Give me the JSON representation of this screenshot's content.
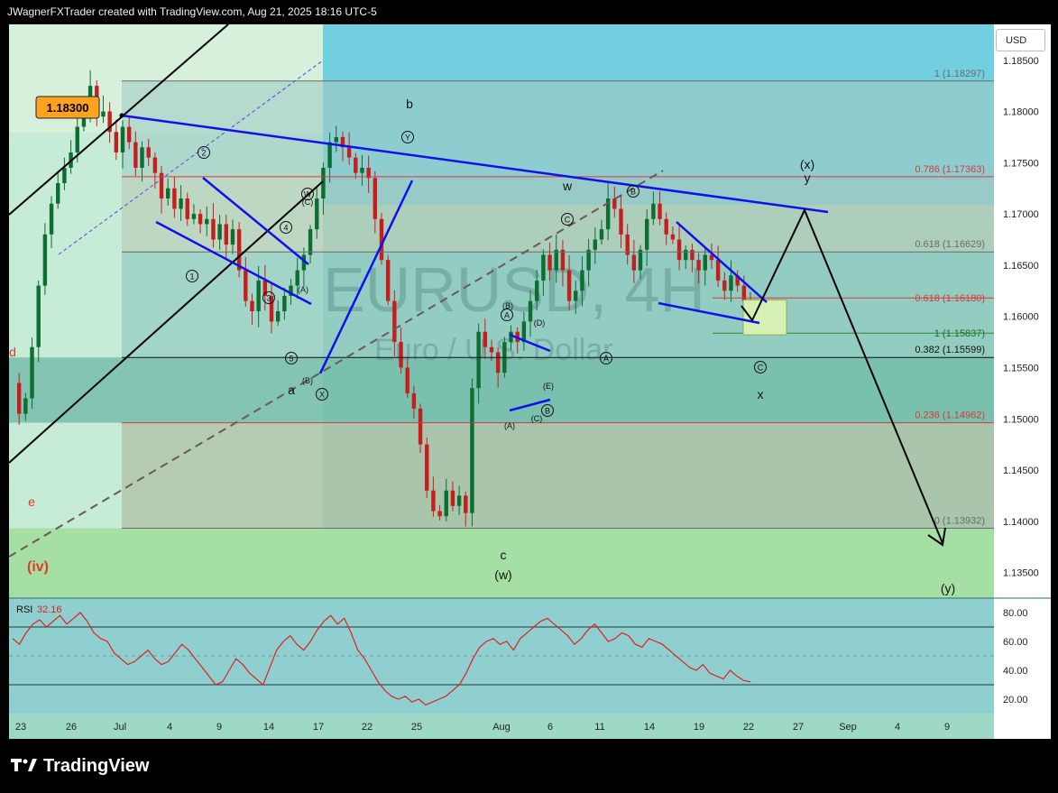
{
  "header": {
    "credit": "JWagnerFXTrader created with TradingView.com, Aug 21, 2025 18:16 UTC-5"
  },
  "currency_button": "USD",
  "price_tag": "1.18300",
  "watermark": {
    "symbol": "EURUSD, 4H",
    "name": "Euro / U.S. Dollar"
  },
  "brand": {
    "name": "TradingView"
  },
  "colors": {
    "panel_bg": "#74d3e2",
    "pane_bg": "#8fcfd0",
    "bull": "#0c6e32",
    "bear": "#c81d1d",
    "trend": "#1010ee",
    "fib_red": "#d83838",
    "green_zone": "#d6f0b4",
    "rsi": "#e02020",
    "tag_bg": "#ffa220"
  },
  "chart_data": [
    {
      "type": "candlestick",
      "title": "EUR/USD 4H",
      "yticks": [
        "1.18500",
        "1.18000",
        "1.17500",
        "1.17000",
        "1.16500",
        "1.16000",
        "1.15500",
        "1.15000",
        "1.14500",
        "1.14000",
        "1.13500"
      ],
      "xticks": [
        "23",
        "26",
        "Jul",
        "4",
        "9",
        "14",
        "17",
        "22",
        "25",
        "Aug",
        "6",
        "11",
        "14",
        "19",
        "22",
        "27",
        "Sep",
        "4",
        "9"
      ],
      "ylim": [
        1.1325,
        1.1885
      ],
      "fib_levels": [
        {
          "ratio": "1",
          "price": 1.18297,
          "label": "1 (1.18297)"
        },
        {
          "ratio": "0.786",
          "price": 1.17363,
          "label": "0.786 (1.17363)"
        },
        {
          "ratio": "0.618",
          "price": 1.16629,
          "label": "0.618 (1.16629)"
        },
        {
          "ratio": "0.382",
          "price": 1.15599,
          "label": "0.382 (1.15599)"
        },
        {
          "ratio": "0.236",
          "price": 1.14962,
          "label": "0.236 (1.14962)"
        },
        {
          "ratio": "0",
          "price": 1.13932,
          "label": "0 (1.13932)"
        }
      ],
      "extension_levels": [
        {
          "ratio": "0.618",
          "price": 1.1618,
          "label": "0.618 (1.16180)"
        },
        {
          "ratio": "1",
          "price": 1.15837,
          "label": "1 (1.15837)"
        }
      ],
      "price_path": [
        1.1535,
        1.1505,
        1.152,
        1.157,
        1.163,
        1.168,
        1.171,
        1.173,
        1.1745,
        1.176,
        1.1785,
        1.1805,
        1.1825,
        1.1795,
        1.18,
        1.178,
        1.176,
        1.1785,
        1.177,
        1.1745,
        1.1765,
        1.1755,
        1.174,
        1.1715,
        1.1725,
        1.1705,
        1.1715,
        1.1695,
        1.17,
        1.169,
        1.1695,
        1.1675,
        1.169,
        1.167,
        1.1685,
        1.1645,
        1.1615,
        1.1605,
        1.1635,
        1.162,
        1.1595,
        1.1605,
        1.162,
        1.163,
        1.1645,
        1.166,
        1.1685,
        1.1715,
        1.1745,
        1.177,
        1.1775,
        1.1765,
        1.1755,
        1.174,
        1.1745,
        1.1735,
        1.1695,
        1.1655,
        1.1615,
        1.1575,
        1.155,
        1.1525,
        1.151,
        1.1475,
        1.143,
        1.141,
        1.1405,
        1.143,
        1.1415,
        1.1425,
        1.1408,
        1.153,
        1.1585,
        1.157,
        1.1565,
        1.1545,
        1.1575,
        1.1585,
        1.1575,
        1.1595,
        1.1615,
        1.1635,
        1.166,
        1.1645,
        1.1665,
        1.1645,
        1.1615,
        1.1625,
        1.1645,
        1.1665,
        1.1675,
        1.1685,
        1.1715,
        1.1705,
        1.168,
        1.166,
        1.1645,
        1.1665,
        1.1695,
        1.171,
        1.1695,
        1.168,
        1.1675,
        1.1655,
        1.1665,
        1.1655,
        1.1645,
        1.166,
        1.1655,
        1.1635,
        1.1625,
        1.164,
        1.163,
        1.1615,
        1.1605
      ],
      "rsi": {
        "label": "RSI",
        "value": "32.16",
        "ylim": [
          10,
          90
        ],
        "yticks": [
          "80.00",
          "60.00",
          "40.00",
          "20.00"
        ],
        "levels": [
          70,
          50,
          30
        ],
        "path": [
          62,
          58,
          66,
          72,
          75,
          70,
          74,
          78,
          72,
          76,
          80,
          74,
          66,
          62,
          60,
          52,
          48,
          44,
          46,
          50,
          54,
          48,
          44,
          46,
          52,
          58,
          54,
          48,
          42,
          36,
          30,
          32,
          40,
          48,
          44,
          38,
          34,
          30,
          42,
          54,
          60,
          64,
          58,
          54,
          60,
          68,
          74,
          78,
          72,
          76,
          66,
          54,
          48,
          40,
          32,
          26,
          22,
          20,
          22,
          18,
          20,
          16,
          18,
          20,
          22,
          26,
          30,
          38,
          48,
          56,
          60,
          62,
          58,
          60,
          54,
          62,
          66,
          70,
          74,
          76,
          72,
          68,
          64,
          58,
          62,
          68,
          72,
          66,
          60,
          62,
          66,
          64,
          58,
          56,
          62,
          60,
          58,
          54,
          50,
          46,
          42,
          40,
          44,
          38,
          36,
          34,
          40,
          36,
          33,
          32
        ]
      },
      "annotations": {
        "waves": [
          "b",
          "a",
          "c",
          "(w)",
          "w",
          "x",
          "y",
          "(x)",
          "(y)",
          "d",
          "e",
          "(iv)"
        ],
        "circled": [
          "1",
          "2",
          "3",
          "4",
          "5",
          "W",
          "X",
          "Y",
          "A",
          "B",
          "C"
        ],
        "minor": [
          "(A)",
          "(B)",
          "(C)",
          "(D)",
          "(E)"
        ]
      }
    }
  ]
}
